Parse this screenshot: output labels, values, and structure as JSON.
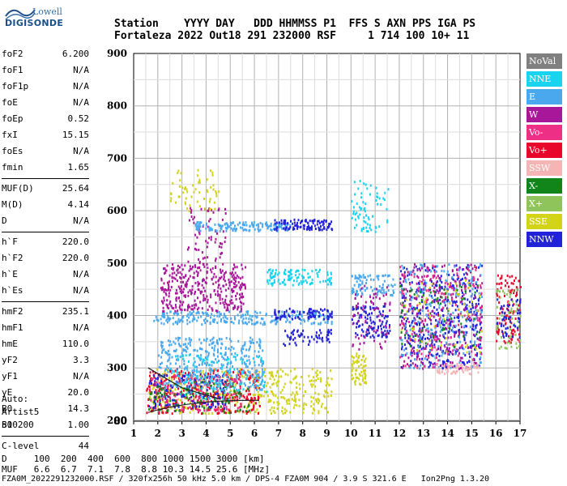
{
  "logo": {
    "line1": "Lowell",
    "line2": "DIGISONDE"
  },
  "header": {
    "row1": "Station    YYYY DAY   DDD HHMMSS P1  FFS S AXN PPS IGA PS",
    "row2": "Fortaleza 2022 Out18 291 232000 RSF     1 714 100 10+ 11"
  },
  "params": [
    {
      "label": "foF2",
      "value": "6.200"
    },
    {
      "label": "foF1",
      "value": "N/A"
    },
    {
      "label": "foF1p",
      "value": "N/A"
    },
    {
      "label": "foE",
      "value": "N/A"
    },
    {
      "label": "foEp",
      "value": "0.52"
    },
    {
      "label": "fxI",
      "value": "15.15"
    },
    {
      "label": "foEs",
      "value": "N/A"
    },
    {
      "label": "fmin",
      "value": "1.65"
    },
    {
      "label": "MUF(D)",
      "value": "25.64"
    },
    {
      "label": "M(D)",
      "value": "4.14"
    },
    {
      "label": "D",
      "value": "N/A"
    },
    {
      "label": "h`F",
      "value": "220.0"
    },
    {
      "label": "h`F2",
      "value": "220.0"
    },
    {
      "label": "h`E",
      "value": "N/A"
    },
    {
      "label": "h`Es",
      "value": "N/A"
    },
    {
      "label": "hmF2",
      "value": "235.1"
    },
    {
      "label": "hmF1",
      "value": "N/A"
    },
    {
      "label": "hmE",
      "value": "110.0"
    },
    {
      "label": "yF2",
      "value": "3.3"
    },
    {
      "label": "yF1",
      "value": "N/A"
    },
    {
      "label": "yE",
      "value": "20.0"
    },
    {
      "label": "B0",
      "value": "14.3"
    },
    {
      "label": "B1",
      "value": "1.00"
    },
    {
      "label": "C-level",
      "value": "44"
    }
  ],
  "auto": {
    "line1": "Auto:",
    "line2": "Artist5",
    "line3": "500200"
  },
  "legend": [
    {
      "label": "NoVal",
      "color": "#808080"
    },
    {
      "label": "NNE",
      "color": "#19d3ef"
    },
    {
      "label": "E",
      "color": "#4aa8ee"
    },
    {
      "label": "W",
      "color": "#a8179a"
    },
    {
      "label": "Vo-",
      "color": "#ee2f86"
    },
    {
      "label": "Vo+",
      "color": "#e8062a"
    },
    {
      "label": "SSW",
      "color": "#f5b5b5"
    },
    {
      "label": "X-",
      "color": "#12851a"
    },
    {
      "label": "X+",
      "color": "#8fc45a"
    },
    {
      "label": "SSE",
      "color": "#d3d318"
    },
    {
      "label": "NNW",
      "color": "#2222d8"
    }
  ],
  "footer": {
    "d_row": "D     100  200  400  600  800 1000 1500 3000 [km]",
    "muf_row": "MUF   6.6  6.7  7.1  7.8  8.8 10.3 14.5 25.6 [MHz]",
    "file_row": "FZA0M_2022291232000.RSF / 320fx256h 50 kHz 5.0 km / DPS-4 FZA0M 904 / 3.9 S 321.6 E   Ion2Png 1.3.20"
  },
  "chart_data": {
    "type": "scatter",
    "x_ticks": [
      1,
      2,
      3,
      4,
      5,
      6,
      7,
      8,
      9,
      10,
      11,
      12,
      13,
      14,
      15,
      16,
      17
    ],
    "y_ticks": [
      80,
      200,
      300,
      400,
      500,
      600,
      700,
      800,
      900
    ],
    "xlim": [
      1,
      17
    ],
    "ylim": [
      80,
      900
    ],
    "grid": true,
    "legend_position": "right",
    "clusters": [
      {
        "series": "SSE",
        "x": [
          1.6,
          9.2
        ],
        "y": [
          215,
          300
        ],
        "density": 450
      },
      {
        "series": "Vo+",
        "x": [
          1.5,
          6.2
        ],
        "y": [
          215,
          300
        ],
        "density": 330
      },
      {
        "series": "Vo-",
        "x": [
          1.6,
          5.5
        ],
        "y": [
          220,
          290
        ],
        "density": 160
      },
      {
        "series": "X-",
        "x": [
          1.6,
          5.8
        ],
        "y": [
          215,
          275
        ],
        "density": 120
      },
      {
        "series": "NNW",
        "x": [
          1.6,
          4.8
        ],
        "y": [
          225,
          290
        ],
        "density": 120
      },
      {
        "series": "E",
        "x": [
          2,
          6.4
        ],
        "y": [
          260,
          360
        ],
        "density": 380
      },
      {
        "series": "NNE",
        "x": [
          2.5,
          6.5
        ],
        "y": [
          240,
          330
        ],
        "density": 110
      },
      {
        "series": "E",
        "x": [
          1.8,
          9.2
        ],
        "y": [
          385,
          410
        ],
        "density": 260
      },
      {
        "series": "NNW",
        "x": [
          6.8,
          9.2
        ],
        "y": [
          395,
          415
        ],
        "density": 80
      },
      {
        "series": "W",
        "x": [
          2.1,
          5.6
        ],
        "y": [
          410,
          500
        ],
        "density": 360
      },
      {
        "series": "W",
        "x": [
          3.2,
          4.8
        ],
        "y": [
          500,
          610
        ],
        "density": 70
      },
      {
        "series": "E",
        "x": [
          3.5,
          7.5
        ],
        "y": [
          563,
          580
        ],
        "density": 140
      },
      {
        "series": "NNW",
        "x": [
          6.8,
          9.2
        ],
        "y": [
          565,
          585
        ],
        "density": 110
      },
      {
        "series": "NNE",
        "x": [
          6.5,
          9.2
        ],
        "y": [
          460,
          490
        ],
        "density": 110
      },
      {
        "series": "SSE",
        "x": [
          2.5,
          4.5
        ],
        "y": [
          600,
          680
        ],
        "density": 60
      },
      {
        "series": "NNW",
        "x": [
          7.0,
          9.2
        ],
        "y": [
          345,
          375
        ],
        "density": 60
      },
      {
        "series": "SSE",
        "x": [
          10.0,
          10.6
        ],
        "y": [
          270,
          330
        ],
        "density": 60
      },
      {
        "series": "E",
        "x": [
          10.0,
          11.8
        ],
        "y": [
          440,
          480
        ],
        "density": 90
      },
      {
        "series": "NNW",
        "x": [
          10.0,
          11.6
        ],
        "y": [
          360,
          420
        ],
        "density": 110
      },
      {
        "series": "W",
        "x": [
          10.0,
          11.6
        ],
        "y": [
          330,
          460
        ],
        "density": 70
      },
      {
        "series": "NNE",
        "x": [
          10.0,
          11.6
        ],
        "y": [
          560,
          660
        ],
        "density": 70
      },
      {
        "series": "NNW",
        "x": [
          12.0,
          15.4
        ],
        "y": [
          300,
          500
        ],
        "density": 420
      },
      {
        "series": "W",
        "x": [
          12.0,
          15.4
        ],
        "y": [
          300,
          500
        ],
        "density": 260
      },
      {
        "series": "E",
        "x": [
          12.0,
          15.4
        ],
        "y": [
          300,
          500
        ],
        "density": 200
      },
      {
        "series": "Vo-",
        "x": [
          12.0,
          15.4
        ],
        "y": [
          300,
          500
        ],
        "density": 160
      },
      {
        "series": "X-",
        "x": [
          12.0,
          15.4
        ],
        "y": [
          340,
          460
        ],
        "density": 70
      },
      {
        "series": "SSE",
        "x": [
          12.0,
          15.4
        ],
        "y": [
          330,
          470
        ],
        "density": 60
      },
      {
        "series": "SSW",
        "x": [
          13.5,
          15.3
        ],
        "y": [
          290,
          310
        ],
        "density": 60
      },
      {
        "series": "Vo+",
        "x": [
          16.0,
          17.0
        ],
        "y": [
          350,
          480
        ],
        "density": 110
      },
      {
        "series": "X+",
        "x": [
          16.0,
          17.0
        ],
        "y": [
          330,
          460
        ],
        "density": 60
      },
      {
        "series": "NNW",
        "x": [
          16.0,
          17.0
        ],
        "y": [
          360,
          440
        ],
        "density": 50
      }
    ]
  }
}
